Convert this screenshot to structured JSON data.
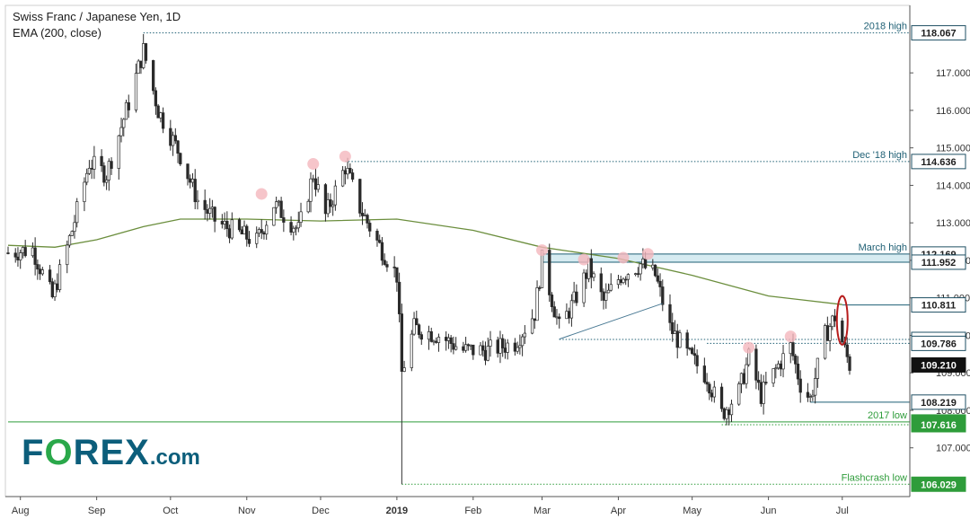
{
  "header": {
    "title": "Swiss Franc / Japanese Yen, 1D",
    "indicator": "EMA (200, close)"
  },
  "logo": {
    "part1": "F",
    "o": "O",
    "part2": "REX",
    "suffix": ".com"
  },
  "colors": {
    "candle_up": "#2a2a2a",
    "candle_down": "#2a2a2a",
    "ema": "#6b8e3d",
    "support_resistance": "#1e5f74",
    "green_level": "#2e9c3a",
    "highlight_circle": "#f4b6bd",
    "red_circle": "#b71c1c",
    "zone_fill": "#cfe8ee",
    "axis_text": "#333333",
    "label_dark_bg": "#1e4f63"
  },
  "chart_data": {
    "type": "candlestick",
    "title": "Swiss Franc / Japanese Yen, 1D",
    "overlay": "EMA (200, close)",
    "ylim": [
      105.7,
      118.8
    ],
    "y_ticks": [
      107.0,
      108.0,
      109.0,
      110.0,
      111.0,
      112.0,
      113.0,
      114.0,
      115.0,
      116.0,
      117.0
    ],
    "x_ticks": [
      "Aug",
      "Sep",
      "Oct",
      "Nov",
      "Dec",
      "2019",
      "Feb",
      "Mar",
      "Apr",
      "May",
      "Jun",
      "Jul"
    ],
    "date_range": [
      "2018-07-27",
      "2019-07-04"
    ],
    "price_key_points": [
      [
        "2018-07-27",
        112.2
      ],
      [
        "2018-08-06",
        112.3
      ],
      [
        "2018-08-14",
        111.0
      ],
      [
        "2018-08-22",
        112.8
      ],
      [
        "2018-08-29",
        114.6
      ],
      [
        "2018-09-05",
        114.3
      ],
      [
        "2018-09-14",
        116.2
      ],
      [
        "2018-09-20",
        117.6
      ],
      [
        "2018-09-26",
        116.0
      ],
      [
        "2018-10-05",
        114.8
      ],
      [
        "2018-10-12",
        113.6
      ],
      [
        "2018-10-20",
        113.0
      ],
      [
        "2018-11-05",
        112.5
      ],
      [
        "2018-11-12",
        113.5
      ],
      [
        "2018-11-22",
        112.8
      ],
      [
        "2018-11-28",
        114.3
      ],
      [
        "2018-12-03",
        113.2
      ],
      [
        "2018-12-11",
        114.5
      ],
      [
        "2018-12-17",
        113.4
      ],
      [
        "2018-12-24",
        112.5
      ],
      [
        "2019-01-01",
        111.6
      ],
      [
        "2019-01-03",
        109.0
      ],
      [
        "2019-01-08",
        110.2
      ],
      [
        "2019-01-18",
        110.0
      ],
      [
        "2019-01-28",
        109.6
      ],
      [
        "2019-02-07",
        109.6
      ],
      [
        "2019-02-18",
        109.8
      ],
      [
        "2019-02-26",
        110.6
      ],
      [
        "2019-03-01",
        112.0
      ],
      [
        "2019-03-08",
        110.2
      ],
      [
        "2019-03-14",
        110.9
      ],
      [
        "2019-03-20",
        111.8
      ],
      [
        "2019-03-26",
        110.9
      ],
      [
        "2019-04-02",
        111.6
      ],
      [
        "2019-04-10",
        111.9
      ],
      [
        "2019-04-16",
        111.6
      ],
      [
        "2019-04-22",
        110.2
      ],
      [
        "2019-04-29",
        109.5
      ],
      [
        "2019-05-07",
        108.9
      ],
      [
        "2019-05-13",
        107.9
      ],
      [
        "2019-05-20",
        108.5
      ],
      [
        "2019-05-24",
        109.4
      ],
      [
        "2019-05-29",
        108.4
      ],
      [
        "2019-06-05",
        109.2
      ],
      [
        "2019-06-10",
        109.7
      ],
      [
        "2019-06-14",
        108.7
      ],
      [
        "2019-06-18",
        108.3
      ],
      [
        "2019-06-24",
        110.0
      ],
      [
        "2019-06-28",
        110.5
      ],
      [
        "2019-07-02",
        109.6
      ],
      [
        "2019-07-04",
        109.21
      ]
    ],
    "spike_candle": {
      "date": "2019-01-03",
      "high": 110.2,
      "low": 106.029
    },
    "ema200": [
      [
        "2018-07-27",
        112.4
      ],
      [
        "2018-08-15",
        112.35
      ],
      [
        "2018-09-01",
        112.55
      ],
      [
        "2018-09-20",
        112.9
      ],
      [
        "2018-10-05",
        113.1
      ],
      [
        "2018-11-01",
        113.1
      ],
      [
        "2018-12-01",
        113.05
      ],
      [
        "2019-01-01",
        113.1
      ],
      [
        "2019-02-01",
        112.8
      ],
      [
        "2019-03-01",
        112.35
      ],
      [
        "2019-04-01",
        112.05
      ],
      [
        "2019-05-01",
        111.6
      ],
      [
        "2019-06-01",
        111.05
      ],
      [
        "2019-07-01",
        110.82
      ]
    ],
    "levels": [
      {
        "value": 118.067,
        "label": "2018 high",
        "start": "2018-09-20",
        "style": "dotted"
      },
      {
        "value": 114.636,
        "label": "Dec '18 high",
        "start": "2018-12-11",
        "style": "dotted"
      },
      {
        "value": 112.169,
        "label": "March high",
        "start": "2018-07-27",
        "style": "zone-top"
      },
      {
        "value": 111.952,
        "label": "",
        "start": "2018-07-27",
        "style": "zone-bottom"
      },
      {
        "value": 110.811,
        "label": "",
        "start": "2019-07-01",
        "style": "solid"
      },
      {
        "value": 109.891,
        "label": "",
        "start": "2019-03-08",
        "style": "dotted"
      },
      {
        "value": 109.786,
        "label": "",
        "start": "2019-05-07",
        "style": "dotted"
      },
      {
        "value": 108.219,
        "label": "",
        "start": "2019-06-18",
        "style": "solid"
      },
      {
        "value": 107.69,
        "label": "2017 low",
        "start": "2018-07-27",
        "style": "green-solid"
      },
      {
        "value": 107.616,
        "label": "",
        "start": "2019-05-13",
        "style": "green-dotted"
      },
      {
        "value": 106.029,
        "label": "Flashcrash low",
        "start": "2019-01-03",
        "style": "green-dotted"
      }
    ],
    "price_labels": [
      {
        "value": 118.067,
        "text": "118.067",
        "kind": "dark"
      },
      {
        "value": 114.636,
        "text": "114.636",
        "kind": "dark"
      },
      {
        "value": 112.169,
        "text": "112.169",
        "kind": "dark"
      },
      {
        "value": 111.952,
        "text": "111.952",
        "kind": "dark"
      },
      {
        "value": 110.811,
        "text": "110.811",
        "kind": "dark"
      },
      {
        "value": 109.891,
        "text": "109.891",
        "kind": "dark"
      },
      {
        "value": 109.786,
        "text": "109.786",
        "kind": "dark"
      },
      {
        "value": 109.21,
        "text": "109.210",
        "kind": "current"
      },
      {
        "value": 108.219,
        "text": "108.219",
        "kind": "dark"
      },
      {
        "value": 107.69,
        "text": "107.690",
        "kind": "green"
      },
      {
        "value": 107.616,
        "text": "107.616",
        "kind": "green"
      },
      {
        "value": 106.029,
        "text": "106.029",
        "kind": "green"
      }
    ],
    "highlight_points": [
      [
        "2018-11-07",
        113.7
      ],
      [
        "2018-11-28",
        114.5
      ],
      [
        "2018-12-11",
        114.7
      ],
      [
        "2019-03-01",
        112.2
      ],
      [
        "2019-03-18",
        111.95
      ],
      [
        "2019-04-03",
        112.0
      ],
      [
        "2019-04-13",
        112.1
      ],
      [
        "2019-05-24",
        109.6
      ],
      [
        "2019-06-10",
        109.9
      ]
    ],
    "red_ellipse": {
      "date": "2019-07-01",
      "low": 109.75,
      "high": 111.05
    },
    "trendline": [
      [
        "2019-03-08",
        109.9
      ],
      [
        "2019-04-19",
        110.85
      ]
    ]
  }
}
